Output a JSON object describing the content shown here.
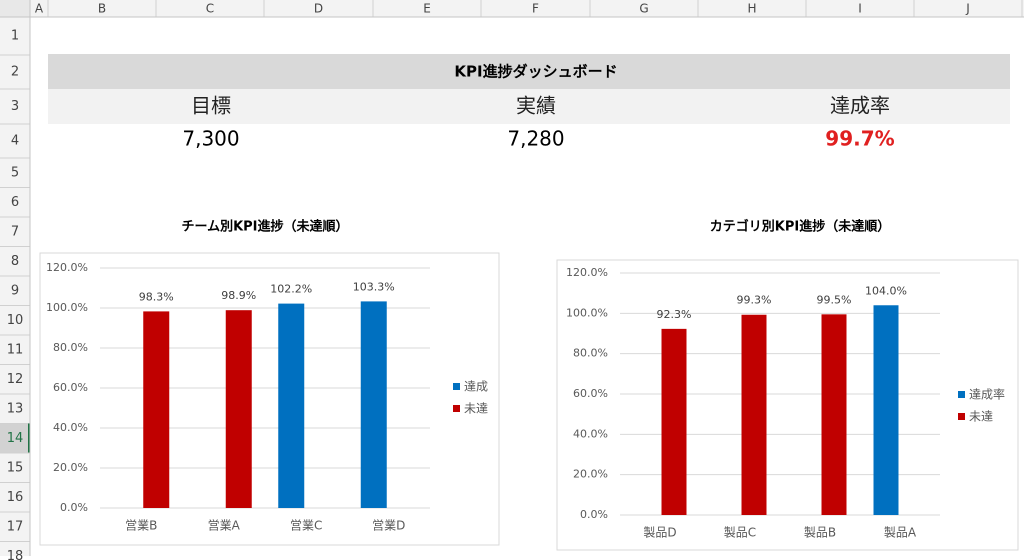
{
  "sheet": {
    "columns": [
      "A",
      "B",
      "C",
      "D",
      "E",
      "F",
      "G",
      "H",
      "I",
      "J"
    ],
    "rows": [
      "1",
      "2",
      "3",
      "4",
      "5",
      "6",
      "7",
      "8",
      "9",
      "10",
      "11",
      "12",
      "13",
      "14",
      "15",
      "16",
      "17",
      "18"
    ],
    "dashboard": {
      "title": "KPI進捗ダッシュボード",
      "labels": [
        "目標",
        "実績",
        "達成率"
      ],
      "values": [
        "7,300",
        "7,280",
        "99.7%"
      ]
    }
  },
  "chart_data": [
    {
      "type": "bar",
      "title": "チーム別KPI進捗（未達順）",
      "categories": [
        "営業B",
        "営業A",
        "営業C",
        "営業D"
      ],
      "series": [
        {
          "name": "達成",
          "color": "#0070c0",
          "values": [
            null,
            null,
            102.2,
            103.3
          ],
          "value_labels": [
            null,
            null,
            "102.2%",
            "103.3%"
          ]
        },
        {
          "name": "未達",
          "color": "#c00000",
          "values": [
            98.3,
            98.9,
            null,
            null
          ],
          "value_labels": [
            "98.3%",
            "98.9%",
            null,
            null
          ]
        }
      ],
      "ylim": [
        0,
        120
      ],
      "yticks": [
        {
          "value": 0,
          "label": "0.0%"
        },
        {
          "value": 20,
          "label": "20.0%"
        },
        {
          "value": 40,
          "label": "40.0%"
        },
        {
          "value": 60,
          "label": "60.0%"
        },
        {
          "value": 80,
          "label": "80.0%"
        },
        {
          "value": 100,
          "label": "100.0%"
        },
        {
          "value": 120,
          "label": "120.0%"
        }
      ],
      "grid": true,
      "legend": "right"
    },
    {
      "type": "bar",
      "title": "カテゴリ別KPI進捗（未達順）",
      "categories": [
        "製品D",
        "製品C",
        "製品B",
        "製品A"
      ],
      "series": [
        {
          "name": "達成率",
          "color": "#0070c0",
          "values": [
            null,
            null,
            null,
            104.0
          ],
          "value_labels": [
            null,
            null,
            null,
            "104.0%"
          ]
        },
        {
          "name": "未達",
          "color": "#c00000",
          "values": [
            92.3,
            99.3,
            99.5,
            null
          ],
          "value_labels": [
            "92.3%",
            "99.3%",
            "99.5%",
            null
          ]
        }
      ],
      "ylim": [
        0,
        120
      ],
      "yticks": [
        {
          "value": 0,
          "label": "0.0%"
        },
        {
          "value": 20,
          "label": "20.0%"
        },
        {
          "value": 40,
          "label": "40.0%"
        },
        {
          "value": 60,
          "label": "60.0%"
        },
        {
          "value": 80,
          "label": "80.0%"
        },
        {
          "value": 100,
          "label": "100.0%"
        },
        {
          "value": 120,
          "label": "120.0%"
        }
      ],
      "grid": true,
      "legend": "right"
    }
  ]
}
